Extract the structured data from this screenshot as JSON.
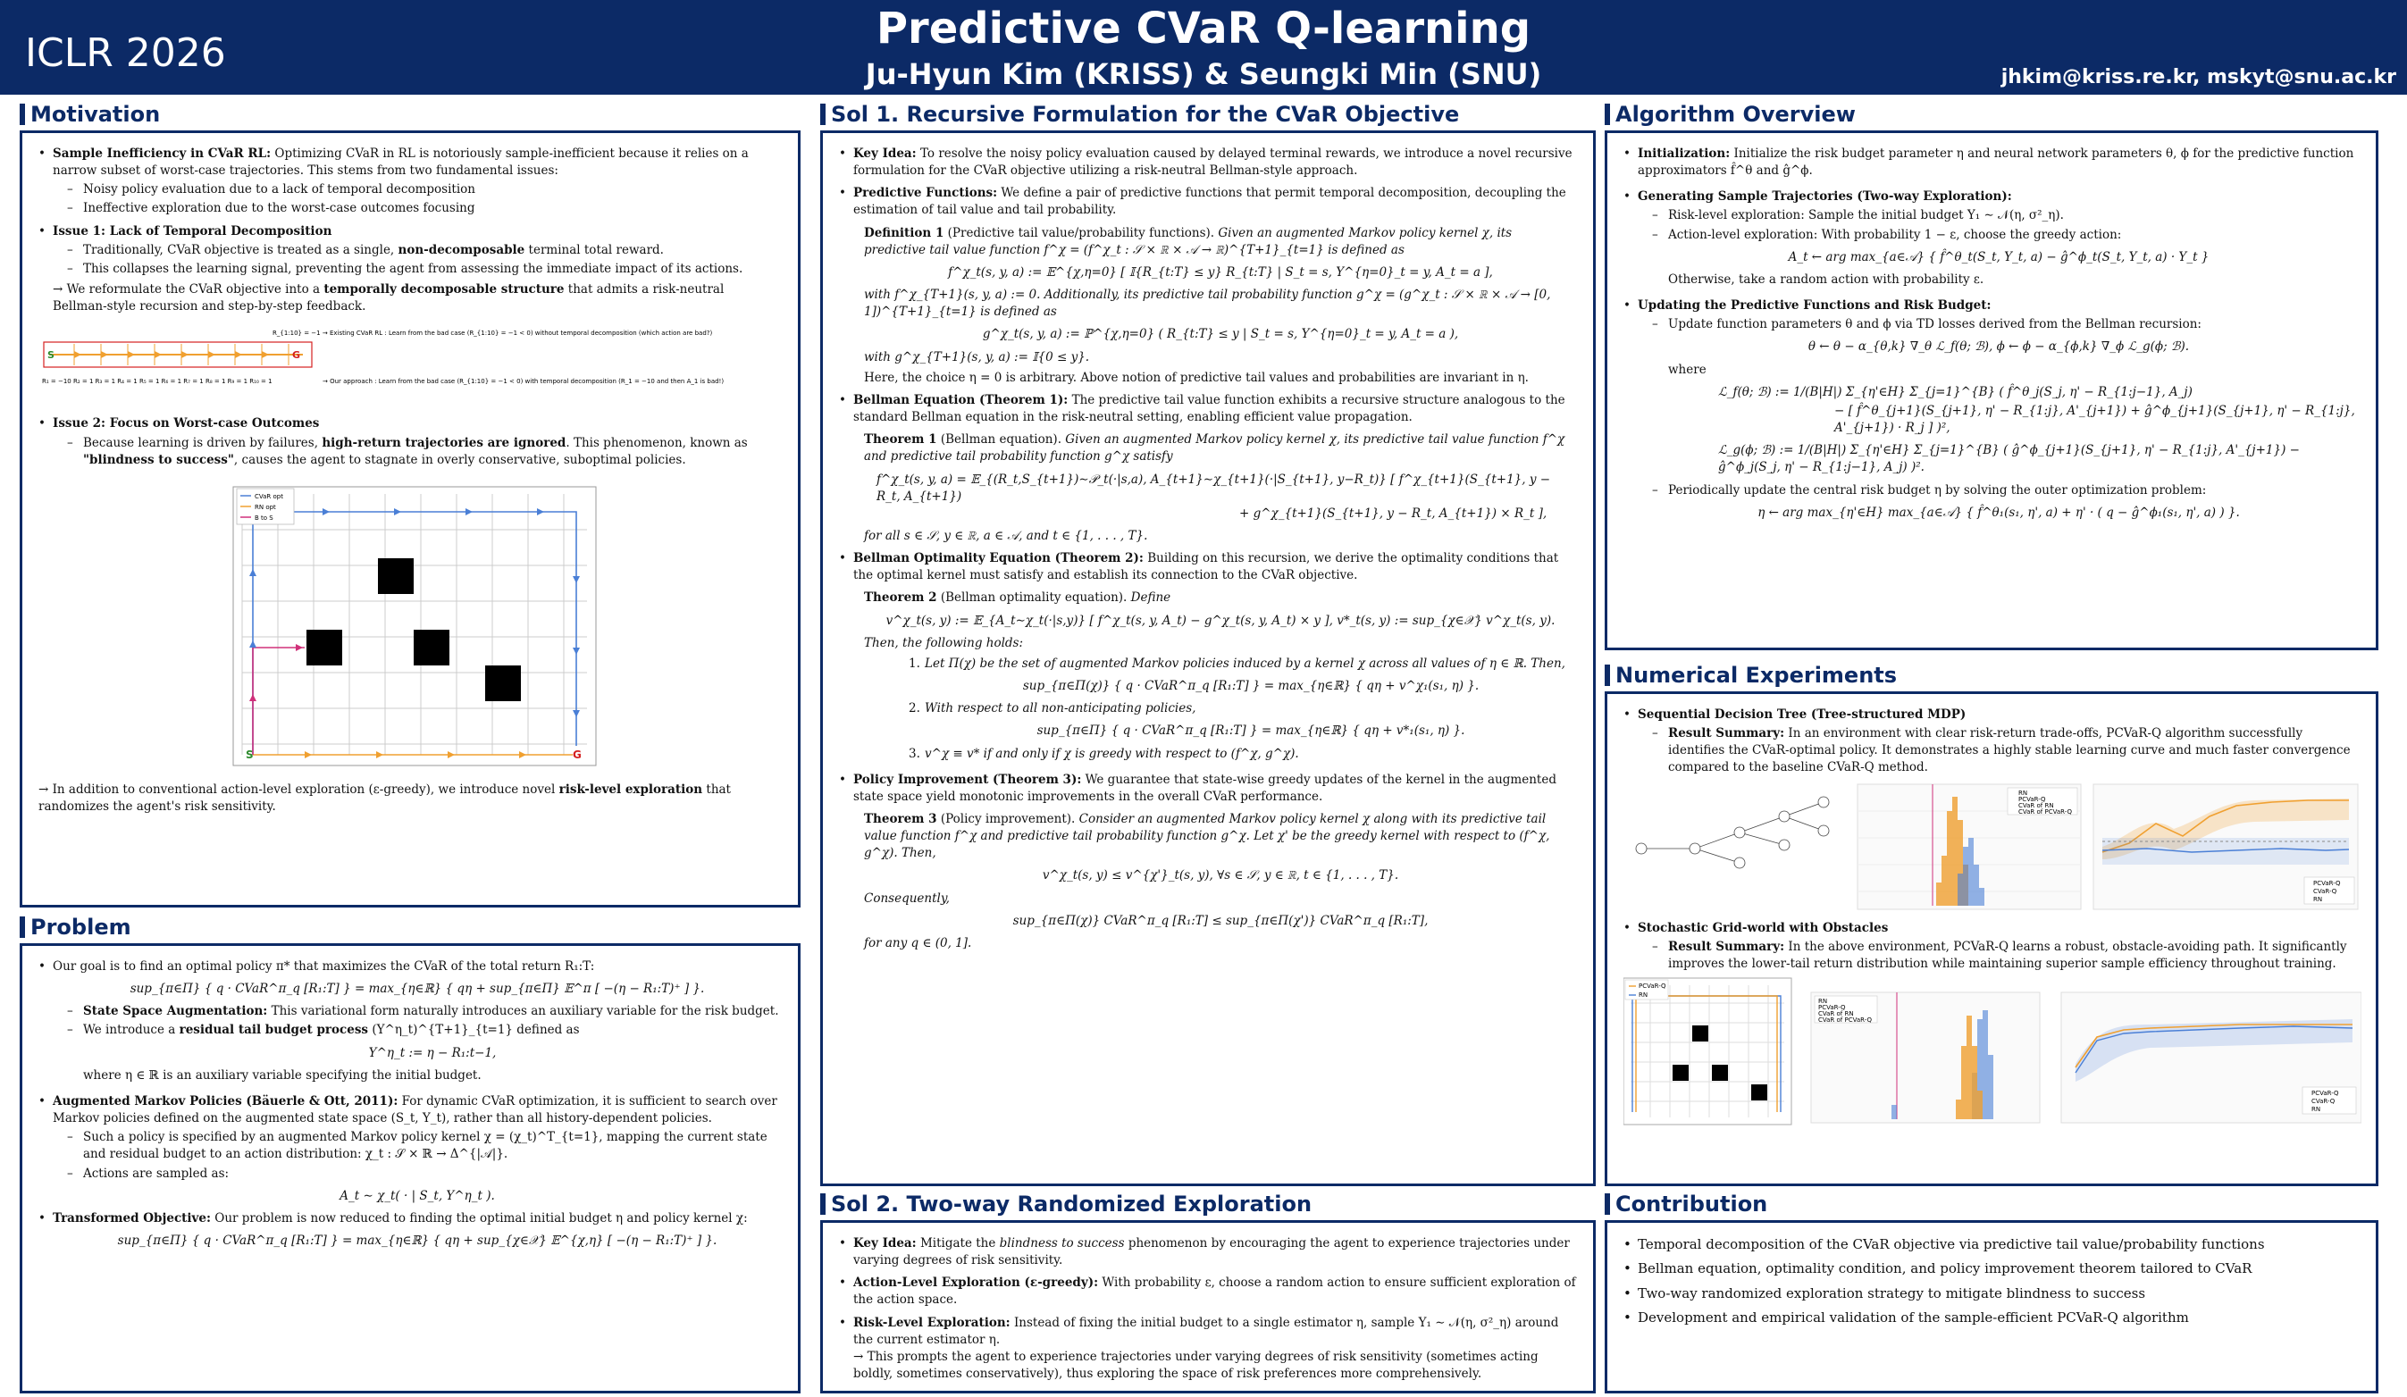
{
  "header": {
    "conference": "ICLR 2026",
    "title": "Predictive CVaR Q-learning",
    "authors": "Ju-Hyun Kim (KRISS) & Seungki Min (SNU)",
    "emails": "jhkim@kriss.re.kr, mskyt@snu.ac.kr"
  },
  "motivation": {
    "heading": "Motivation",
    "b1_title": "Sample Inefficiency in CVaR RL:",
    "b1_text": "Optimizing CVaR in RL is notoriously sample-inefficient because it relies on a narrow subset of worst-case trajectories. This stems from two fundamental issues:",
    "b1_s1": "Noisy policy evaluation due to a lack of temporal decomposition",
    "b1_s2": "Ineffective exploration due to the worst-case outcomes focusing",
    "b2_title": "Issue 1: Lack of Temporal Decomposition",
    "b2_s1a": "Traditionally, CVaR objective is treated as a single,",
    "b2_s1b": "non-decomposable",
    "b2_s1c": "terminal total reward.",
    "b2_s2": "This collapses the learning signal, preventing the agent from assessing the immediate impact of its actions.",
    "b2_p1a": "→ We reformulate the CVaR objective into a",
    "b2_p1b": "temporally decomposable structure",
    "b2_p1c": "that admits a risk-neutral Bellman-style recursion and step-by-step feedback.",
    "fig1_label1": "R_{1:10} = −1   → Existing CVaR RL : Learn from the bad case (R_{1:10} = −1 < 0) without temporal decomposition (which action are bad?)",
    "fig1_label2": "→ Our approach : Learn from the bad case (R_{1:10} = −1 < 0) with temporal decomposition  (R_1 = −10 and then A_1 is bad!)",
    "fig1_rewards": "R₁ = −10  R₂ = 1  R₃ = 1  R₄ = 1  R₅ = 1  R₆ = 1  R₇ = 1  R₈ = 1  R₉ = 1  R₁₀ = 1",
    "b3_title": "Issue 2: Focus on Worst-case Outcomes",
    "b3_s1a": "Because learning is driven by failures,",
    "b3_s1b": "high-return trajectories are ignored",
    "b3_s1c": ". This phenomenon, known as",
    "b3_s1d": "\"blindness to success\"",
    "b3_s1e": ", causes the agent to stagnate in overly conservative, suboptimal policies.",
    "legend": [
      "CVaR opt",
      "RN opt",
      "B to S"
    ],
    "p_last_a": "→ In addition to conventional action-level exploration (ε-greedy), we introduce novel",
    "p_last_b": "risk-level exploration",
    "p_last_c": "that randomizes the agent's risk sensitivity."
  },
  "problem": {
    "heading": "Problem",
    "b1": "Our goal is to find an optimal policy π* that maximizes the CVaR of the total return R₁:T:",
    "eq1": "sup_{π∈Π} { q · CVaR^π_q [R₁:T] } = max_{η∈ℝ} { qη + sup_{π∈Π} 𝔼^π [ −(η − R₁:T)⁺ ] }.",
    "s1_title": "State Space Augmentation:",
    "s1_text": "This variational form naturally introduces an auxiliary variable for the risk budget.",
    "s2_a": "We introduce a",
    "s2_b": "residual tail budget process",
    "s2_c": "(Y^η_t)^{T+1}_{t=1} defined as",
    "eq2": "Y^η_t := η − R₁:t−1,",
    "s2_d": "where η ∈ ℝ is an auxiliary variable specifying the initial budget.",
    "b2_title": "Augmented Markov Policies (Bäuerle & Ott, 2011):",
    "b2_text": "For dynamic CVaR optimization, it is sufficient to search over Markov policies defined on the augmented state space (S_t, Y_t), rather than all history-dependent policies.",
    "b2_s1": "Such a policy is specified by an augmented Markov policy kernel χ = (χ_t)^T_{t=1}, mapping the current state and residual budget to an action distribution: χ_t : 𝒮 × ℝ → Δ^{|𝒜|}.",
    "b2_s2": "Actions are sampled as:",
    "eq3": "A_t ∼ χ_t( · | S_t, Y^η_t ).",
    "b3_title": "Transformed Objective:",
    "b3_text": "Our problem is now reduced to finding the optimal initial budget η and policy kernel χ:",
    "eq4": "sup_{π∈Π} { q · CVaR^π_q [R₁:T] } = max_{η∈ℝ} { qη + sup_{χ∈𝒳} 𝔼^{χ,η} [ −(η − R₁:T)⁺ ] }."
  },
  "sol1": {
    "heading": "Sol 1. Recursive Formulation for the CVaR Objective",
    "k_title": "Key Idea:",
    "k_text": "To resolve the noisy policy evaluation caused by delayed terminal rewards, we introduce a novel recursive formulation for the CVaR objective utilizing a risk-neutral Bellman-style approach.",
    "pf_title": "Predictive Functions:",
    "pf_text": "We define a pair of predictive functions that permit temporal decomposition, decoupling the estimation of tail value and tail probability.",
    "def1_title": "Definition 1",
    "def1_paren": "(Predictive tail value/probability functions).",
    "def1_text": "Given an augmented Markov policy kernel χ, its predictive tail value function f^χ = (f^χ_t : 𝒮 × ℝ × 𝒜 → ℝ)^{T+1}_{t=1} is defined as",
    "def1_eq1": "f^χ_t(s, y, a) := 𝔼^{χ,η=0} [ 𝕀{R_{t:T} ≤ y} R_{t:T} | S_t = s, Y^{η=0}_t = y, A_t = a ],",
    "def1_text2": "with f^χ_{T+1}(s, y, a) := 0. Additionally, its predictive tail probability function g^χ = (g^χ_t : 𝒮 × ℝ × 𝒜 → [0, 1])^{T+1}_{t=1} is defined as",
    "def1_eq2": "g^χ_t(s, y, a) := ℙ^{χ,η=0} ( R_{t:T} ≤ y | S_t = s, Y^{η=0}_t = y, A_t = a ),",
    "def1_text3": "with g^χ_{T+1}(s, y, a) := 𝕀{0 ≤ y}.",
    "def1_text4": "Here, the choice η = 0 is arbitrary.  Above notion of predictive tail values and probabilities are invariant in η.",
    "be_title": "Bellman Equation (Theorem 1):",
    "be_text": "The predictive tail value function exhibits a recursive structure analogous to the standard Bellman equation in the risk-neutral setting, enabling efficient value propagation.",
    "th1_title": "Theorem 1",
    "th1_paren": "(Bellman equation).",
    "th1_text": "Given an augmented Markov policy kernel χ, its predictive tail value function f^χ and predictive tail probability function g^χ satisfy",
    "th1_eq1": "f^χ_t(s, y, a) = 𝔼_{(R_t,S_{t+1})∼𝒫_t(·|s,a), A_{t+1}∼χ_{t+1}(·|S_{t+1}, y−R_t)} [ f^χ_{t+1}(S_{t+1}, y − R_t, A_{t+1})",
    "th1_eq2": "+ g^χ_{t+1}(S_{t+1}, y − R_t, A_{t+1}) × R_t ],",
    "th1_text2": "for all s ∈ 𝒮, y ∈ ℝ, a ∈ 𝒜, and t ∈ {1, . . . , T}.",
    "bo_title": "Bellman Optimality Equation (Theorem 2):",
    "bo_text": "Building on this recursion, we derive the optimality conditions that the optimal kernel must satisfy and establish its connection to the CVaR objective.",
    "th2_title": "Theorem 2",
    "th2_paren": "(Bellman optimality equation).",
    "th2_define": "Define",
    "th2_eq1": "v^χ_t(s, y) := 𝔼_{A_t∼χ_t(·|s,y)} [ f^χ_t(s, y, A_t) − g^χ_t(s, y, A_t) × y ],    v*_t(s, y) := sup_{χ∈𝒳} v^χ_t(s, y).",
    "th2_then": "Then, the following holds:",
    "th2_i1": "Let Π(χ) be the set of augmented Markov policies induced by a kernel χ across all values of η ∈ ℝ. Then,",
    "th2_i1_eq": "sup_{π∈Π(χ)} { q · CVaR^π_q [R₁:T] } = max_{η∈ℝ} { qη + v^χ₁(s₁, η) }.",
    "th2_i2": "With respect to all non-anticipating policies,",
    "th2_i2_eq": "sup_{π∈Π} { q · CVaR^π_q [R₁:T] } = max_{η∈ℝ} { qη + v*₁(s₁, η) }.",
    "th2_i3": "v^χ ≡ v* if and only if χ is greedy with respect to (f^χ, g^χ).",
    "pi_title": "Policy Improvement (Theorem 3):",
    "pi_text": "We guarantee that state-wise greedy updates of the kernel in the augmented state space yield monotonic improvements in the overall CVaR performance.",
    "th3_title": "Theorem 3",
    "th3_paren": "(Policy improvement).",
    "th3_text": "Consider an augmented Markov policy kernel χ along with its predictive tail value function f^χ and predictive tail probability function g^χ. Let χ' be the greedy kernel with respect to (f^χ, g^χ). Then,",
    "th3_eq1": "v^χ_t(s, y) ≤ v^{χ'}_t(s, y),    ∀s ∈ 𝒮, y ∈ ℝ, t ∈ {1, . . . , T}.",
    "th3_conseq": "Consequently,",
    "th3_eq2": "sup_{π∈Π(χ)} CVaR^π_q [R₁:T] ≤ sup_{π∈Π(χ')} CVaR^π_q [R₁:T],",
    "th3_text2": "for any q ∈ (0, 1]."
  },
  "sol2": {
    "heading": "Sol 2. Two-way Randomized Exploration",
    "k_title": "Key Idea:",
    "k_text_a": "Mitigate the",
    "k_text_b": "blindness to success",
    "k_text_c": "phenomenon by encouraging the agent to experience trajectories under varying degrees of risk sensitivity.",
    "al_title": "Action-Level Exploration (ε-greedy):",
    "al_text": "With probability ε, choose a random action to ensure sufficient exploration of the action space.",
    "rl_title": "Risk-Level Exploration:",
    "rl_text": "Instead of fixing the initial budget to a single estimator η, sample Y₁ ∼ 𝒩(η, σ²_η) around the current estimator η.",
    "rl_text2": "→ This prompts the agent to experience trajectories under varying degrees of risk sensitivity (sometimes acting boldly, sometimes conservatively), thus exploring the space of risk preferences more comprehensively."
  },
  "algo": {
    "heading": "Algorithm Overview",
    "i_title": "Initialization:",
    "i_text": "Initialize the risk budget parameter η and neural network parameters θ, ϕ for the predictive function approximators f̂^θ and ĝ^ϕ.",
    "g_title": "Generating Sample Trajectories (Two-way Exploration):",
    "g_s1": "Risk-level exploration: Sample the initial budget Y₁ ∼ 𝒩(η, σ²_η).",
    "g_s2": "Action-level exploration: With probability 1 − ε, choose the greedy action:",
    "g_eq": "A_t ← arg max_{a∈𝒜} { f̂^θ_t(S_t, Y_t, a) − ĝ^ϕ_t(S_t, Y_t, a) · Y_t }",
    "g_other": "Otherwise, take a random action with probability ε.",
    "u_title": "Updating the Predictive Functions and Risk Budget:",
    "u_s1": "Update function parameters θ and ϕ via TD losses derived from the Bellman recursion:",
    "u_eq1": "θ ← θ − α_{θ,k} ∇_θ ℒ_f(θ; ℬ),     ϕ ← ϕ − α_{ϕ,k} ∇_ϕ ℒ_g(ϕ; ℬ).",
    "u_where": "where",
    "u_eq2": "ℒ_f(θ; ℬ) := 1/(B|H|) Σ_{η'∈H} Σ_{j=1}^{B} ( f̂^θ_j(S_j, η' − R_{1:j−1}, A_j)",
    "u_eq3": "− [ f̂^θ_{j+1}(S_{j+1}, η' − R_{1:j}, A'_{j+1}) + ĝ^ϕ_{j+1}(S_{j+1}, η' − R_{1:j}, A'_{j+1}) · R_j ] )²,",
    "u_eq4": "ℒ_g(ϕ; ℬ) := 1/(B|H|) Σ_{η'∈H} Σ_{j=1}^{B} ( ĝ^ϕ_{j+1}(S_{j+1}, η' − R_{1:j}, A'_{j+1}) − ĝ^ϕ_j(S_j, η' − R_{1:j−1}, A_j) )².",
    "u_s2": "Periodically update the central risk budget η by solving the outer optimization problem:",
    "u_eq5": "η ← arg max_{η'∈H} max_{a∈𝒜} { f̂^θ₁(s₁, η', a) + η' · ( q − ĝ^ϕ₁(s₁, η', a) ) }."
  },
  "numerical": {
    "heading": "Numerical Experiments",
    "e1_title": "Sequential Decision Tree (Tree-structured MDP)",
    "e1_rs_title": "Result Summary:",
    "e1_rs_text": "In an environment with clear risk-return trade-offs, PCVaR-Q algorithm successfully identifies the CVaR-optimal policy. It demonstrates a highly stable learning curve and much faster convergence compared to the baseline CVaR-Q method.",
    "e2_title": "Stochastic Grid-world with Obstacles",
    "e2_rs_title": "Result Summary:",
    "e2_rs_text": "In the above environment, PCVaR-Q learns a robust, obstacle-avoiding path. It significantly improves the lower-tail return distribution while maintaining superior sample efficiency throughout training.",
    "grid_legend": [
      "PCVaR-Q",
      "RN"
    ],
    "hist_legend": [
      "RN",
      "PCVaR-Q",
      "CVaR of RN",
      "CVaR of PCVaR-Q"
    ],
    "curve_legend": [
      "PCVaR-Q",
      "CVaR-Q",
      "RN"
    ]
  },
  "contribution": {
    "heading": "Contribution",
    "items": [
      "Temporal decomposition of the CVaR objective via predictive tail value/probability functions",
      "Bellman equation, optimality condition, and policy improvement theorem tailored to CVaR",
      "Two-way randomized exploration strategy to mitigate blindness to success",
      "Development and empirical validation of the sample-efficient PCVaR-Q algorithm"
    ]
  },
  "colors": {
    "navy": "#0c2a66",
    "blue": "#4a7fd6",
    "orange": "#f0a030",
    "magenta": "#d0307a",
    "green": "#2e8b2e",
    "red": "#d42020"
  }
}
